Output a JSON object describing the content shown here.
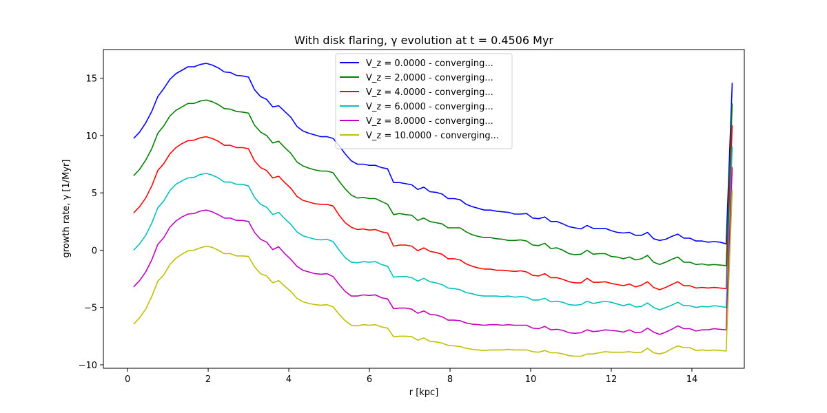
{
  "chart_data": {
    "type": "line",
    "title": "With disk flaring, γ evolution at t = 0.4506 Myr",
    "xlabel": "r [kpc]",
    "ylabel": "growth rate, γ [1/Myr]",
    "xlim": [
      -0.6,
      15.3
    ],
    "ylim": [
      -10.3,
      17.5
    ],
    "xticks": [
      0,
      2,
      4,
      6,
      8,
      10,
      12,
      14
    ],
    "yticks": [
      -10,
      -5,
      0,
      5,
      10,
      15
    ],
    "grid": false,
    "legend_position": "top-center",
    "x": [
      0.15,
      0.3,
      0.45,
      0.6,
      0.75,
      0.9,
      1.05,
      1.2,
      1.35,
      1.5,
      1.65,
      1.8,
      1.95,
      2.1,
      2.25,
      2.4,
      2.55,
      2.7,
      2.85,
      3.0,
      3.15,
      3.3,
      3.45,
      3.6,
      3.75,
      3.9,
      4.05,
      4.2,
      4.35,
      4.5,
      4.65,
      4.8,
      4.95,
      5.1,
      5.25,
      5.4,
      5.55,
      5.7,
      5.85,
      6.0,
      6.15,
      6.3,
      6.45,
      6.6,
      6.75,
      6.9,
      7.05,
      7.2,
      7.35,
      7.5,
      7.65,
      7.8,
      7.95,
      8.1,
      8.25,
      8.4,
      8.55,
      8.7,
      8.85,
      9.0,
      9.15,
      9.3,
      9.45,
      9.6,
      9.75,
      9.9,
      10.05,
      10.2,
      10.35,
      10.5,
      10.65,
      10.8,
      10.95,
      11.1,
      11.25,
      11.4,
      11.55,
      11.7,
      11.85,
      12.0,
      12.15,
      12.3,
      12.45,
      12.6,
      12.75,
      12.9,
      13.05,
      13.2,
      13.35,
      13.5,
      13.65,
      13.8,
      13.95,
      14.1,
      14.25,
      14.4,
      14.55,
      14.7,
      14.85,
      15.0
    ],
    "series": [
      {
        "name": "V_z = 0.0000 - converging...",
        "color": "#0000ff",
        "values": [
          9.75,
          10.3,
          11.1,
          12.1,
          13.4,
          14.1,
          14.9,
          15.4,
          15.7,
          16.0,
          16.0,
          16.2,
          16.3,
          16.15,
          15.9,
          15.55,
          15.5,
          15.25,
          15.2,
          15.1,
          14.0,
          13.4,
          13.15,
          12.5,
          12.6,
          12.1,
          11.6,
          10.8,
          10.4,
          10.2,
          10.05,
          9.9,
          9.9,
          9.75,
          9.1,
          8.4,
          7.8,
          7.5,
          7.5,
          7.4,
          7.4,
          7.2,
          7.1,
          5.9,
          5.9,
          5.8,
          5.7,
          5.3,
          5.5,
          5.1,
          5.05,
          4.9,
          4.5,
          4.5,
          4.4,
          4.0,
          3.8,
          3.65,
          3.5,
          3.5,
          3.4,
          3.35,
          3.3,
          3.15,
          3.15,
          3.2,
          2.8,
          2.75,
          2.9,
          2.5,
          2.5,
          2.3,
          2.05,
          1.95,
          1.85,
          2.15,
          1.9,
          1.9,
          1.9,
          1.7,
          1.55,
          1.5,
          1.55,
          1.3,
          1.3,
          1.55,
          1.0,
          0.85,
          0.95,
          1.2,
          1.4,
          1.05,
          1.05,
          0.8,
          0.8,
          0.7,
          0.75,
          0.7,
          0.55,
          14.6
        ]
      },
      {
        "name": "V_z = 2.0000 - converging...",
        "color": "#008000",
        "values": [
          6.5,
          7.05,
          7.85,
          8.85,
          10.2,
          10.85,
          11.7,
          12.2,
          12.5,
          12.8,
          12.8,
          13.0,
          13.1,
          12.95,
          12.7,
          12.35,
          12.3,
          12.1,
          12.05,
          11.95,
          10.9,
          10.3,
          10.0,
          9.35,
          9.5,
          8.95,
          8.45,
          7.7,
          7.35,
          7.15,
          7.0,
          6.9,
          6.9,
          6.75,
          6.0,
          5.35,
          4.8,
          4.55,
          4.6,
          4.5,
          4.5,
          4.25,
          4.0,
          3.1,
          3.2,
          3.1,
          3.05,
          2.6,
          2.8,
          2.5,
          2.4,
          2.3,
          1.95,
          1.95,
          1.95,
          1.6,
          1.35,
          1.2,
          1.1,
          1.1,
          1.0,
          0.95,
          0.85,
          0.85,
          0.9,
          0.8,
          0.45,
          0.4,
          0.6,
          0.15,
          0.2,
          0.0,
          -0.3,
          -0.4,
          -0.35,
          0.0,
          -0.35,
          -0.3,
          -0.3,
          -0.55,
          -0.6,
          -0.75,
          -0.6,
          -0.85,
          -0.75,
          -0.45,
          -1.05,
          -1.25,
          -1.05,
          -0.8,
          -0.6,
          -1.05,
          -1.05,
          -1.25,
          -1.2,
          -1.3,
          -1.25,
          -1.3,
          -1.35,
          12.8
        ]
      },
      {
        "name": "V_z = 4.0000 - converging...",
        "color": "#ff0000",
        "values": [
          3.25,
          3.8,
          4.55,
          5.6,
          6.95,
          7.55,
          8.4,
          8.95,
          9.3,
          9.55,
          9.6,
          9.8,
          9.9,
          9.75,
          9.5,
          9.15,
          9.15,
          8.95,
          8.95,
          8.85,
          7.8,
          7.2,
          6.95,
          6.3,
          6.45,
          5.9,
          5.4,
          4.7,
          4.35,
          4.2,
          4.05,
          4.0,
          4.0,
          3.85,
          3.05,
          2.4,
          2.0,
          1.8,
          1.85,
          1.75,
          1.8,
          1.6,
          1.5,
          0.35,
          0.45,
          0.45,
          0.35,
          -0.05,
          0.2,
          -0.1,
          -0.2,
          -0.35,
          -0.75,
          -0.75,
          -0.85,
          -1.2,
          -1.4,
          -1.55,
          -1.65,
          -1.65,
          -1.75,
          -1.75,
          -1.8,
          -1.85,
          -1.8,
          -1.9,
          -2.2,
          -2.25,
          -2.05,
          -2.4,
          -2.4,
          -2.55,
          -2.75,
          -2.85,
          -2.85,
          -2.45,
          -2.8,
          -2.8,
          -2.75,
          -2.9,
          -3.0,
          -3.1,
          -2.95,
          -3.2,
          -3.05,
          -2.75,
          -3.25,
          -3.45,
          -3.25,
          -3.0,
          -2.75,
          -3.1,
          -3.1,
          -3.3,
          -3.25,
          -3.3,
          -3.25,
          -3.3,
          -3.35,
          10.9
        ]
      },
      {
        "name": "V_z = 6.0000 - converging...",
        "color": "#00bfbf",
        "values": [
          0.0,
          0.55,
          1.3,
          2.35,
          3.7,
          4.3,
          5.2,
          5.75,
          6.05,
          6.3,
          6.35,
          6.6,
          6.7,
          6.55,
          6.3,
          5.95,
          5.95,
          5.75,
          5.75,
          5.6,
          4.6,
          4.0,
          3.75,
          3.1,
          3.3,
          2.75,
          2.25,
          1.6,
          1.25,
          1.1,
          0.95,
          0.9,
          0.95,
          0.75,
          0.0,
          -0.65,
          -1.05,
          -1.1,
          -1.0,
          -1.05,
          -1.0,
          -1.25,
          -1.4,
          -2.35,
          -2.3,
          -2.3,
          -2.4,
          -2.7,
          -2.45,
          -2.75,
          -2.85,
          -3.0,
          -3.3,
          -3.35,
          -3.45,
          -3.7,
          -3.8,
          -3.95,
          -4.0,
          -4.0,
          -4.0,
          -4.05,
          -4.0,
          -4.1,
          -4.05,
          -4.1,
          -4.35,
          -4.35,
          -4.2,
          -4.5,
          -4.45,
          -4.55,
          -4.75,
          -4.8,
          -4.75,
          -4.45,
          -4.65,
          -4.55,
          -4.45,
          -4.55,
          -4.7,
          -4.85,
          -4.7,
          -4.95,
          -4.9,
          -4.6,
          -5.0,
          -5.2,
          -5.0,
          -4.8,
          -4.55,
          -4.85,
          -4.85,
          -5.0,
          -4.9,
          -4.95,
          -4.85,
          -4.9,
          -5.0,
          9.05
        ]
      },
      {
        "name": "V_z = 8.0000 - converging...",
        "color": "#bf00bf",
        "values": [
          -3.2,
          -2.65,
          -1.9,
          -0.85,
          0.5,
          1.1,
          2.0,
          2.55,
          2.9,
          3.15,
          3.2,
          3.4,
          3.5,
          3.35,
          3.1,
          2.8,
          2.8,
          2.6,
          2.6,
          2.5,
          1.55,
          0.95,
          0.7,
          0.05,
          0.3,
          -0.3,
          -0.8,
          -1.4,
          -1.75,
          -1.9,
          -2.05,
          -2.1,
          -2.05,
          -2.3,
          -3.0,
          -3.6,
          -4.0,
          -4.0,
          -3.9,
          -3.95,
          -3.9,
          -4.15,
          -4.25,
          -5.1,
          -5.05,
          -5.05,
          -5.15,
          -5.5,
          -5.3,
          -5.6,
          -5.65,
          -5.8,
          -6.1,
          -6.1,
          -6.15,
          -6.35,
          -6.45,
          -6.5,
          -6.55,
          -6.5,
          -6.5,
          -6.55,
          -6.5,
          -6.55,
          -6.55,
          -6.55,
          -6.8,
          -6.85,
          -6.65,
          -6.95,
          -6.9,
          -7.0,
          -7.2,
          -7.25,
          -7.2,
          -6.95,
          -7.1,
          -7.05,
          -6.95,
          -7.0,
          -7.05,
          -7.15,
          -6.95,
          -7.2,
          -7.15,
          -6.8,
          -7.15,
          -7.35,
          -7.15,
          -6.9,
          -6.6,
          -6.85,
          -6.85,
          -7.05,
          -6.95,
          -6.95,
          -6.85,
          -6.9,
          -6.95,
          7.25
        ]
      },
      {
        "name": "V_z = 10.0000 - converging...",
        "color": "#bfbf00",
        "values": [
          -6.45,
          -5.9,
          -5.15,
          -4.05,
          -2.7,
          -2.15,
          -1.25,
          -0.7,
          -0.35,
          -0.05,
          0.0,
          0.2,
          0.35,
          0.25,
          0.0,
          -0.3,
          -0.3,
          -0.5,
          -0.5,
          -0.55,
          -1.45,
          -2.05,
          -2.25,
          -2.85,
          -2.65,
          -3.15,
          -3.6,
          -4.2,
          -4.5,
          -4.65,
          -4.75,
          -4.8,
          -4.75,
          -4.95,
          -5.6,
          -6.15,
          -6.55,
          -6.6,
          -6.5,
          -6.55,
          -6.5,
          -6.7,
          -6.8,
          -7.55,
          -7.5,
          -7.5,
          -7.55,
          -7.85,
          -7.65,
          -7.95,
          -8.0,
          -8.1,
          -8.3,
          -8.35,
          -8.4,
          -8.55,
          -8.65,
          -8.7,
          -8.75,
          -8.7,
          -8.7,
          -8.7,
          -8.65,
          -8.7,
          -8.7,
          -8.7,
          -8.85,
          -8.9,
          -8.75,
          -8.95,
          -8.95,
          -9.05,
          -9.2,
          -9.25,
          -9.25,
          -9.05,
          -9.05,
          -8.95,
          -8.85,
          -8.9,
          -8.9,
          -8.9,
          -8.85,
          -8.95,
          -8.9,
          -8.55,
          -8.95,
          -9.05,
          -8.9,
          -8.6,
          -8.35,
          -8.5,
          -8.5,
          -8.75,
          -8.7,
          -8.75,
          -8.7,
          -8.75,
          -8.8,
          5.3
        ]
      }
    ]
  }
}
